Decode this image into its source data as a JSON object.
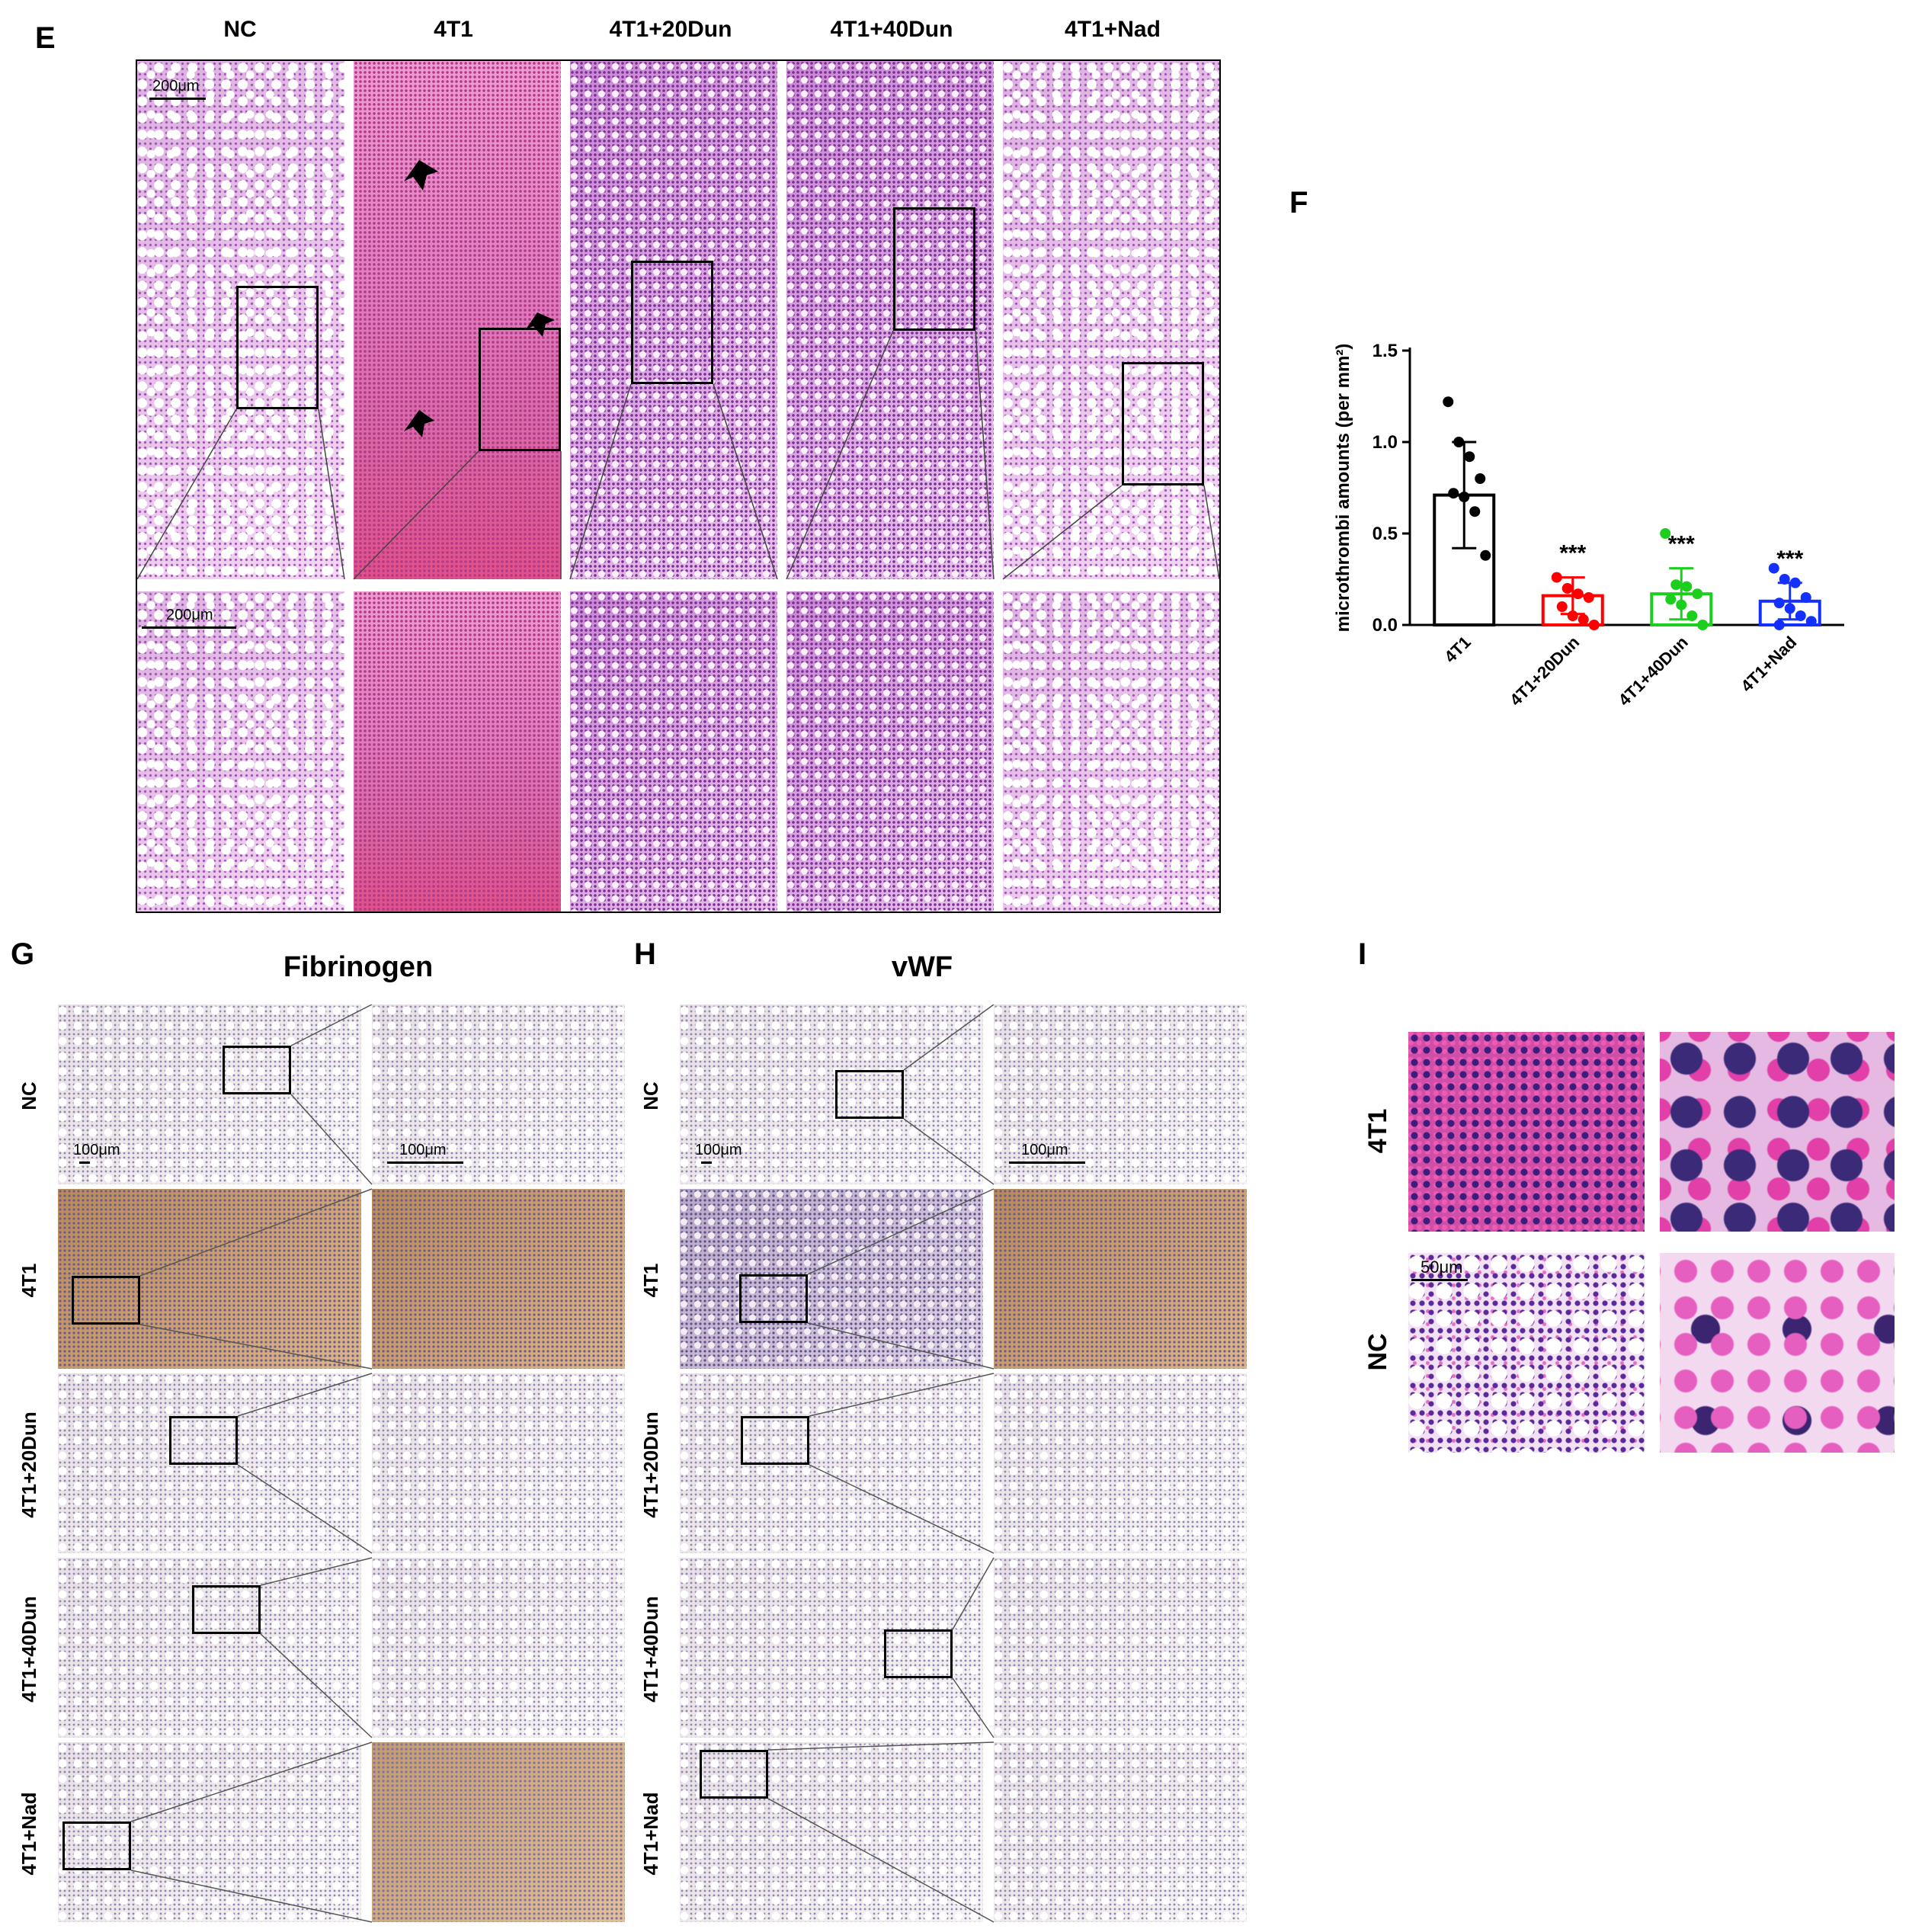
{
  "panels": {
    "E": {
      "letter": "E",
      "columns": [
        "NC",
        "4T1",
        "4T1+20Dun",
        "4T1+40Dun",
        "4T1+Nad"
      ],
      "scale_top": "200μm",
      "scale_bottom": "200μm"
    },
    "F": {
      "letter": "F"
    },
    "G": {
      "letter": "G",
      "title": "Fibrinogen",
      "rows": [
        "NC",
        "4T1",
        "4T1+20Dun",
        "4T1+40Dun",
        "4T1+Nad"
      ],
      "scale_left": "100μm",
      "scale_right": "100μm"
    },
    "H": {
      "letter": "H",
      "title": "vWF",
      "rows": [
        "NC",
        "4T1",
        "4T1+20Dun",
        "4T1+40Dun",
        "4T1+Nad"
      ],
      "scale_left": "100μm",
      "scale_right": "100μm"
    },
    "I": {
      "letter": "I",
      "rows": [
        "4T1",
        "NC"
      ],
      "scale": "50μm"
    }
  },
  "chart_data": {
    "type": "scatter",
    "ylabel": "microthrombi amounts (per mm²)",
    "ylim": [
      0,
      1.5
    ],
    "yticks": [
      0.0,
      0.5,
      1.0,
      1.5
    ],
    "ytick_labels": [
      "0.0",
      "0.5",
      "1.0",
      "1.5"
    ],
    "categories": [
      "4T1",
      "4T1+20Dun",
      "4T1+40Dun",
      "4T1+Nad"
    ],
    "colors": [
      "#000000",
      "#ff0000",
      "#1ccf1c",
      "#1430ff"
    ],
    "means": [
      0.71,
      0.16,
      0.17,
      0.13
    ],
    "sd": [
      0.29,
      0.1,
      0.14,
      0.1
    ],
    "significance": [
      "",
      "***",
      "***",
      "***"
    ],
    "points": [
      [
        1.22,
        1.0,
        0.92,
        0.8,
        0.72,
        0.7,
        0.62,
        0.38
      ],
      [
        0.26,
        0.2,
        0.17,
        0.15,
        0.1,
        0.05,
        0.03,
        0.0
      ],
      [
        0.5,
        0.22,
        0.21,
        0.17,
        0.14,
        0.11,
        0.05,
        0.0
      ],
      [
        0.31,
        0.25,
        0.23,
        0.15,
        0.12,
        0.09,
        0.05,
        0.02,
        0.0
      ]
    ]
  }
}
